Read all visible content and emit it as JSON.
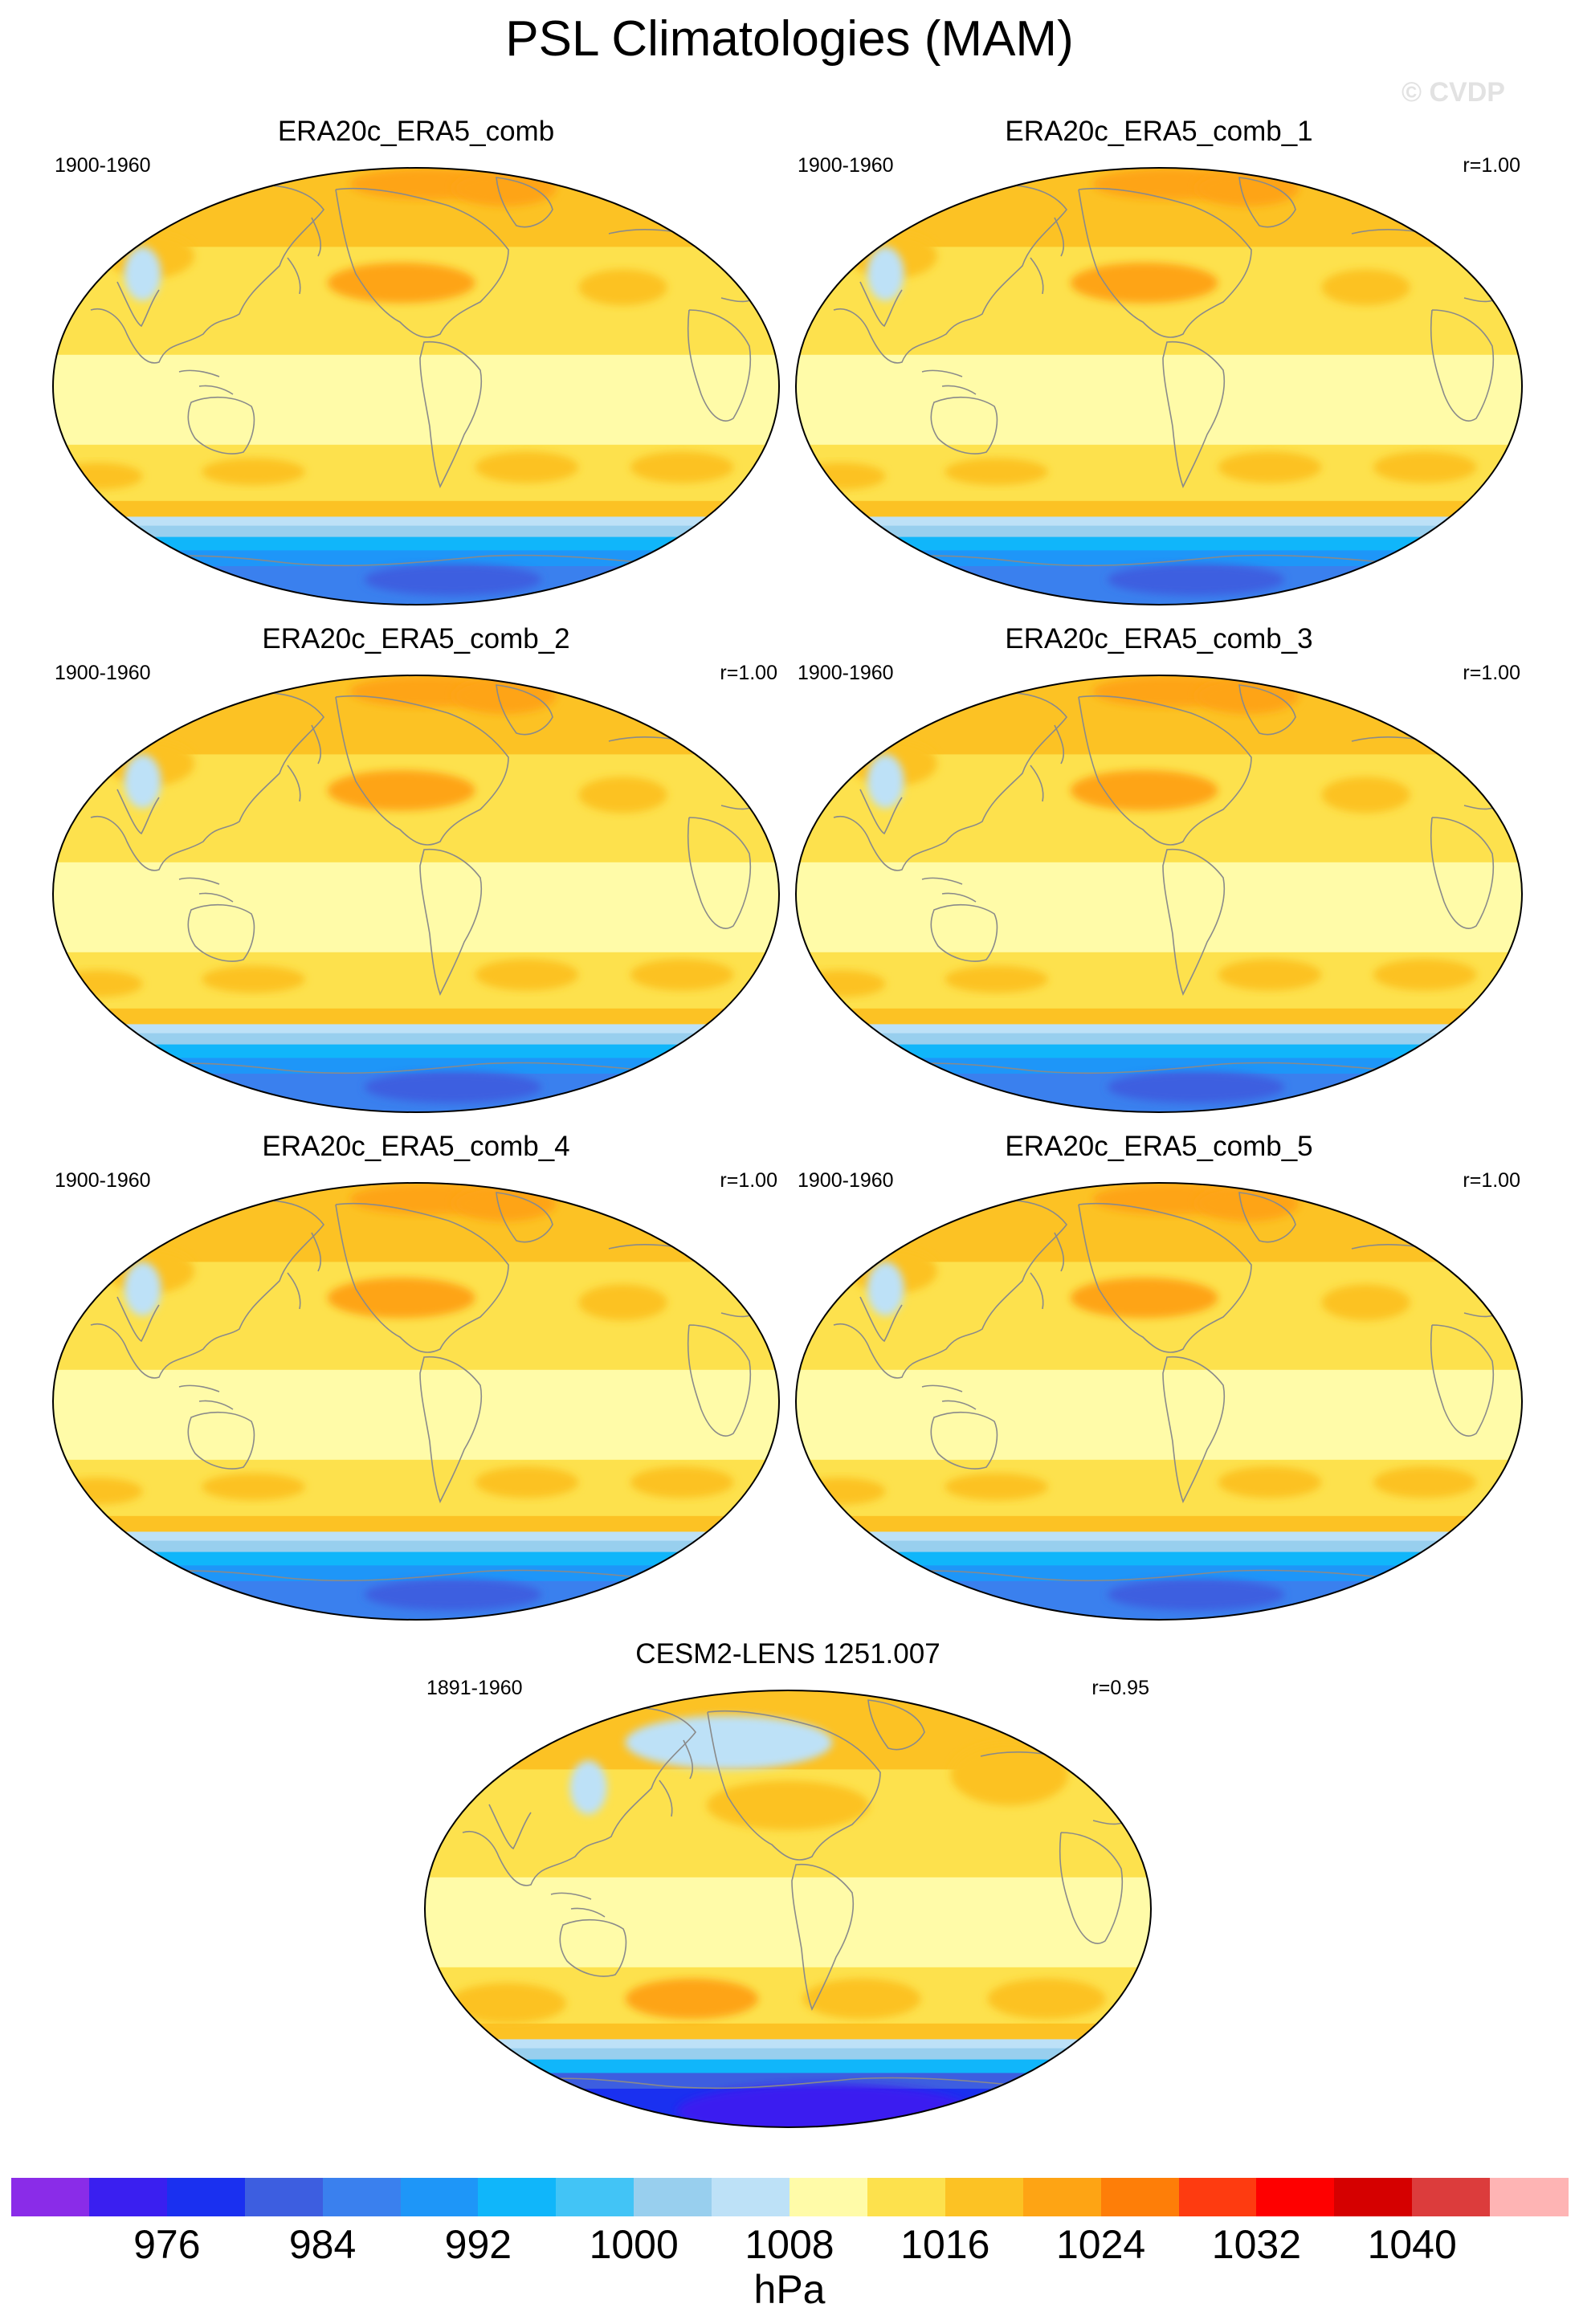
{
  "title": "PSL Climatologies (MAM)",
  "watermark": "© CVDP",
  "panels": [
    {
      "title": "ERA20c_ERA5_comb",
      "period": "1900-1960",
      "corr": "",
      "variant": "obs"
    },
    {
      "title": "ERA20c_ERA5_comb_1",
      "period": "1900-1960",
      "corr": "r=1.00",
      "variant": "obs"
    },
    {
      "title": "ERA20c_ERA5_comb_2",
      "period": "1900-1960",
      "corr": "r=1.00",
      "variant": "obs"
    },
    {
      "title": "ERA20c_ERA5_comb_3",
      "period": "1900-1960",
      "corr": "r=1.00",
      "variant": "obs"
    },
    {
      "title": "ERA20c_ERA5_comb_4",
      "period": "1900-1960",
      "corr": "r=1.00",
      "variant": "obs"
    },
    {
      "title": "ERA20c_ERA5_comb_5",
      "period": "1900-1960",
      "corr": "r=1.00",
      "variant": "obs"
    },
    {
      "title": "CESM2-LENS 1251.007",
      "period": "1891-1960",
      "corr": "r=0.95",
      "variant": "model"
    }
  ],
  "colorbar": {
    "unit": "hPa",
    "tick_labels": [
      "976",
      "984",
      "992",
      "1000",
      "1008",
      "1016",
      "1024",
      "1032",
      "1040"
    ],
    "colors": [
      "#8a2ce8",
      "#3a1ff0",
      "#1a30f0",
      "#3d5ee0",
      "#3a80ee",
      "#1e96f8",
      "#10b6fa",
      "#42c4f6",
      "#98cfee",
      "#bde1f7",
      "#fffba8",
      "#fde14d",
      "#fcc224",
      "#fea414",
      "#fe7e08",
      "#fe3b10",
      "#fe0000",
      "#d50000",
      "#dc3c3c",
      "#feb4b4"
    ]
  }
}
